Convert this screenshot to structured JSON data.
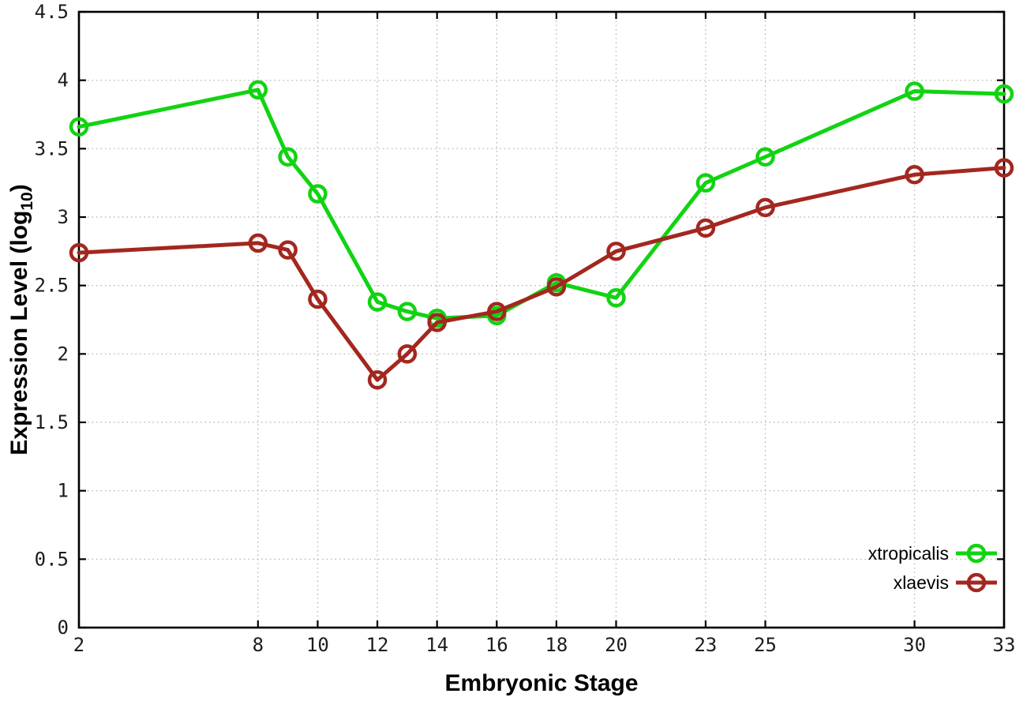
{
  "chart_data": {
    "type": "line",
    "title": "",
    "xlabel": "Embryonic Stage",
    "ylabel": {
      "pre": "Expression Level (log",
      "sub": "10",
      "post": ")"
    },
    "xlim": [
      2,
      33
    ],
    "ylim": [
      0,
      4.5
    ],
    "xticks": [
      2,
      8,
      10,
      12,
      14,
      16,
      18,
      20,
      23,
      25,
      30,
      33
    ],
    "yticks": [
      0,
      0.5,
      1,
      1.5,
      2,
      2.5,
      3,
      3.5,
      4,
      4.5
    ],
    "grid": true,
    "legend_position": "bottom-right",
    "x": [
      2,
      8,
      9,
      10,
      12,
      13,
      14,
      16,
      18,
      20,
      23,
      25,
      30,
      33
    ],
    "series": [
      {
        "name": "xtropicalis",
        "color": "#12d312",
        "values": [
          3.66,
          3.93,
          3.44,
          3.17,
          2.38,
          2.31,
          2.26,
          2.28,
          2.52,
          2.41,
          3.25,
          3.44,
          3.92,
          3.9
        ]
      },
      {
        "name": "xlaevis",
        "color": "#a3271f",
        "values": [
          2.74,
          2.81,
          2.76,
          2.4,
          1.81,
          2.0,
          2.23,
          2.31,
          2.49,
          2.75,
          2.92,
          3.07,
          3.31,
          3.36
        ]
      }
    ]
  },
  "colors": {
    "background": "#ffffff",
    "axis": "#000000",
    "grid": "#b8b8b8",
    "tick_text": "#1c1c1c"
  }
}
